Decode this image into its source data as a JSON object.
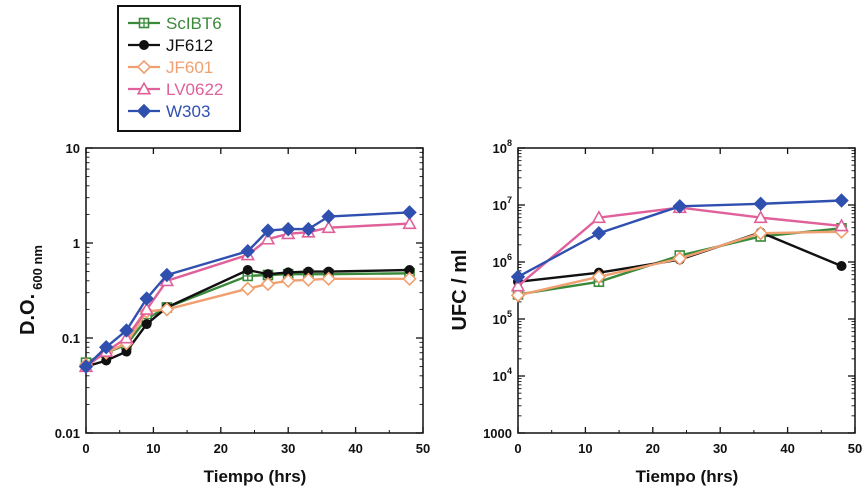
{
  "series_styles": [
    {
      "name": "ScIBT6",
      "color": "#3a8a3a",
      "marker": "square-plus",
      "text_color": "#3a8a3a"
    },
    {
      "name": "JF612",
      "color": "#111111",
      "marker": "circle-filled",
      "text_color": "#111111"
    },
    {
      "name": "JF601",
      "color": "#f0a070",
      "marker": "diamond-open",
      "text_color": "#f0a070"
    },
    {
      "name": "LV0622",
      "color": "#e0609a",
      "marker": "triangle-open",
      "text_color": "#e0609a"
    },
    {
      "name": "W303",
      "color": "#3050b0",
      "marker": "diamond-filled",
      "text_color": "#3050b0"
    }
  ],
  "chart_data": [
    {
      "type": "line",
      "title": "",
      "xlabel": "Tiempo (hrs)",
      "ylabel_main": "D.O.",
      "ylabel_sub": "600 nm",
      "yscale": "log",
      "xlim": [
        0,
        50
      ],
      "ylim": [
        0.01,
        10
      ],
      "xticks": [
        "0",
        "10",
        "20",
        "30",
        "40",
        "50"
      ],
      "yticks": [
        "0.01",
        "0.1",
        "1",
        "10"
      ],
      "legend": "top-left, above plots",
      "series": [
        {
          "name": "ScIBT6",
          "x": [
            0,
            3,
            6,
            9,
            12,
            24,
            27,
            30,
            33,
            36,
            48
          ],
          "y": [
            0.055,
            0.07,
            0.085,
            0.16,
            0.21,
            0.45,
            0.46,
            0.47,
            0.47,
            0.47,
            0.48
          ]
        },
        {
          "name": "JF612",
          "x": [
            0,
            3,
            6,
            9,
            12,
            24,
            27,
            30,
            33,
            36,
            48
          ],
          "y": [
            0.05,
            0.058,
            0.072,
            0.14,
            0.21,
            0.52,
            0.47,
            0.49,
            0.5,
            0.5,
            0.52
          ]
        },
        {
          "name": "JF601",
          "x": [
            0,
            3,
            6,
            9,
            12,
            24,
            27,
            30,
            33,
            36,
            48
          ],
          "y": [
            0.052,
            0.07,
            0.088,
            0.19,
            0.2,
            0.33,
            0.37,
            0.4,
            0.41,
            0.42,
            0.42
          ]
        },
        {
          "name": "LV0622",
          "x": [
            0,
            3,
            6,
            9,
            12,
            24,
            27,
            30,
            33,
            36,
            48
          ],
          "y": [
            0.05,
            0.072,
            0.1,
            0.2,
            0.4,
            0.75,
            1.1,
            1.25,
            1.3,
            1.45,
            1.6
          ]
        },
        {
          "name": "W303",
          "x": [
            0,
            3,
            6,
            9,
            12,
            24,
            27,
            30,
            33,
            36,
            48
          ],
          "y": [
            0.05,
            0.08,
            0.12,
            0.26,
            0.46,
            0.82,
            1.35,
            1.4,
            1.4,
            1.9,
            2.1
          ]
        }
      ]
    },
    {
      "type": "line",
      "title": "",
      "xlabel": "Tiempo (hrs)",
      "ylabel": "UFC / ml",
      "yscale": "log",
      "xlim": [
        0,
        50
      ],
      "ylim": [
        1000,
        100000000
      ],
      "xticks": [
        "0",
        "10",
        "20",
        "30",
        "40",
        "50"
      ],
      "yticks": [
        "1000",
        "10^4",
        "10^5",
        "10^6",
        "10^7",
        "10^8"
      ],
      "series": [
        {
          "name": "ScIBT6",
          "x": [
            0,
            12,
            24,
            36,
            48
          ],
          "y": [
            270000,
            450000,
            1300000,
            2800000,
            3900000
          ]
        },
        {
          "name": "JF612",
          "x": [
            0,
            12,
            24,
            36,
            48
          ],
          "y": [
            450000,
            650000,
            1100000,
            3300000,
            850000
          ]
        },
        {
          "name": "JF601",
          "x": [
            0,
            12,
            24,
            36,
            48
          ],
          "y": [
            260000,
            550000,
            1150000,
            3200000,
            3400000
          ]
        },
        {
          "name": "LV0622",
          "x": [
            0,
            12,
            24,
            36,
            48
          ],
          "y": [
            380000,
            6000000,
            9000000,
            6000000,
            4300000
          ]
        },
        {
          "name": "W303",
          "x": [
            0,
            12,
            24,
            36,
            48
          ],
          "y": [
            550000,
            3200000,
            9500000,
            10500000,
            12000000
          ]
        }
      ]
    }
  ]
}
